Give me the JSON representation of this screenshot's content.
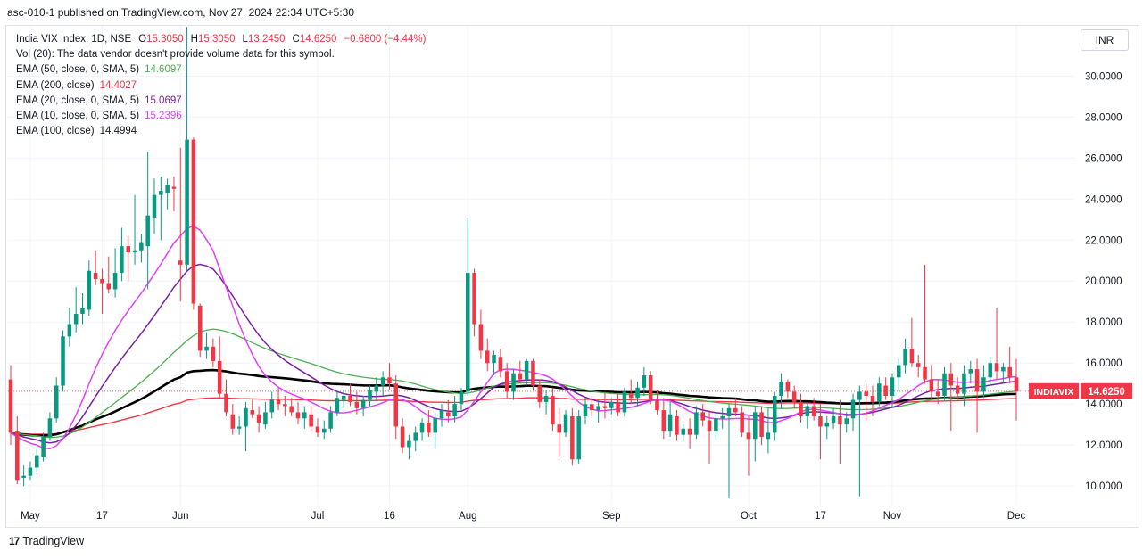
{
  "header": {
    "text": "asc-010-1 published on TradingView.com, Nov 27, 2024 22:34 UTC+5:30"
  },
  "legend": {
    "symbol": "India VIX Index, 1D, NSE",
    "ohlc": [
      {
        "key": "O",
        "value": "15.3050"
      },
      {
        "key": "H",
        "value": "15.3050"
      },
      {
        "key": "L",
        "value": "13.2450"
      },
      {
        "key": "C",
        "value": "14.6250"
      }
    ],
    "change": "−0.6800 (−4.44%)",
    "volume_note": "Vol (20): The data vendor doesn't provide volume data for this symbol.",
    "indicators": [
      {
        "label": "EMA (50, close, 0, SMA, 5)",
        "value": "14.6097",
        "color": "#4caf50"
      },
      {
        "label": "EMA (200, close)",
        "value": "14.4027",
        "color": "#f23645"
      },
      {
        "label": "EMA (20, close, 0, SMA, 5)",
        "value": "15.0697",
        "color": "#7b1fa2"
      },
      {
        "label": "EMA (10, close, 0, SMA, 5)",
        "value": "15.2396",
        "color": "#e040fb"
      },
      {
        "label": "EMA (100, close)",
        "value": "14.4994",
        "color": "#131722"
      }
    ]
  },
  "currency": "INR",
  "price_tag": {
    "symbol": "INDIAVIX",
    "value": "14.6250",
    "color": "#f23645"
  },
  "footer": {
    "logo": "17",
    "brand": "TradingView"
  },
  "chart_data": {
    "type": "candlestick",
    "y_ticks": [
      "10.0000",
      "12.0000",
      "14.0000",
      "16.0000",
      "18.0000",
      "20.0000",
      "22.0000",
      "24.0000",
      "26.0000",
      "28.0000",
      "30.0000"
    ],
    "ylim": [
      9.05,
      32.45
    ],
    "x_ticks": [
      {
        "label": "May",
        "i": 3
      },
      {
        "label": "17",
        "i": 14
      },
      {
        "label": "Jun",
        "i": 26
      },
      {
        "label": "Jul",
        "i": 47
      },
      {
        "label": "16",
        "i": 58
      },
      {
        "label": "Aug",
        "i": 70
      },
      {
        "label": "Sep",
        "i": 92
      },
      {
        "label": "Oct",
        "i": 113
      },
      {
        "label": "17",
        "i": 124
      },
      {
        "label": "Nov",
        "i": 135
      },
      {
        "label": "Dec",
        "i": 154
      }
    ],
    "last_close": 14.625,
    "colors": {
      "up": "#089981",
      "down": "#f23645"
    },
    "candles": [
      [
        15.2,
        15.9,
        12.0,
        12.6
      ],
      [
        12.7,
        13.4,
        10.1,
        10.3
      ],
      [
        10.4,
        11.0,
        10.0,
        10.5
      ],
      [
        10.5,
        11.2,
        10.3,
        10.9
      ],
      [
        10.9,
        11.8,
        10.7,
        11.5
      ],
      [
        11.4,
        12.6,
        11.2,
        12.4
      ],
      [
        12.4,
        13.6,
        12.2,
        13.3
      ],
      [
        13.3,
        15.3,
        13.1,
        14.9
      ],
      [
        14.9,
        17.6,
        14.6,
        17.3
      ],
      [
        17.3,
        18.7,
        16.8,
        17.9
      ],
      [
        17.9,
        19.7,
        17.5,
        18.4
      ],
      [
        18.4,
        19.4,
        17.9,
        18.7
      ],
      [
        18.6,
        21.0,
        18.3,
        20.5
      ],
      [
        20.4,
        21.5,
        19.8,
        20.1
      ],
      [
        20.1,
        20.6,
        18.4,
        19.9
      ],
      [
        19.9,
        21.2,
        19.4,
        19.6
      ],
      [
        19.6,
        21.6,
        19.2,
        20.4
      ],
      [
        20.4,
        22.6,
        20.0,
        21.7
      ],
      [
        21.7,
        22.2,
        20.0,
        21.4
      ],
      [
        21.4,
        24.2,
        20.8,
        21.5
      ],
      [
        21.5,
        22.3,
        20.9,
        21.9
      ],
      [
        21.7,
        26.3,
        19.6,
        23.2
      ],
      [
        23.1,
        25.0,
        22.3,
        24.2
      ],
      [
        24.2,
        25.1,
        22.0,
        24.4
      ],
      [
        24.3,
        25.0,
        23.5,
        24.7
      ],
      [
        24.6,
        25.1,
        23.4,
        24.5
      ],
      [
        21.0,
        26.5,
        19.0,
        20.8
      ],
      [
        20.8,
        32.4,
        20.5,
        26.9
      ],
      [
        26.9,
        27.0,
        18.6,
        18.9
      ],
      [
        18.8,
        18.9,
        16.3,
        16.6
      ],
      [
        16.6,
        17.5,
        16.2,
        16.8
      ],
      [
        16.8,
        17.2,
        15.8,
        16.1
      ],
      [
        16.1,
        17.3,
        14.3,
        14.5
      ],
      [
        14.5,
        15.2,
        13.4,
        13.6
      ],
      [
        13.5,
        14.0,
        12.5,
        12.8
      ],
      [
        12.8,
        13.4,
        12.5,
        12.9
      ],
      [
        12.9,
        14.1,
        11.7,
        13.8
      ],
      [
        13.7,
        14.2,
        13.3,
        13.5
      ],
      [
        13.5,
        13.9,
        12.6,
        13.1
      ],
      [
        13.0,
        14.1,
        12.8,
        13.6
      ],
      [
        13.6,
        14.6,
        13.3,
        14.2
      ],
      [
        14.2,
        14.8,
        13.7,
        14.0
      ],
      [
        14.0,
        14.4,
        13.4,
        13.9
      ],
      [
        13.9,
        14.3,
        13.4,
        13.6
      ],
      [
        13.6,
        14.1,
        13.0,
        13.3
      ],
      [
        13.3,
        13.9,
        12.8,
        13.6
      ],
      [
        13.5,
        13.9,
        12.7,
        12.9
      ],
      [
        12.9,
        13.3,
        12.4,
        12.6
      ],
      [
        12.6,
        13.2,
        12.3,
        12.8
      ],
      [
        12.8,
        13.9,
        12.6,
        13.6
      ],
      [
        13.6,
        14.6,
        13.4,
        14.3
      ],
      [
        14.2,
        14.7,
        13.8,
        14.4
      ],
      [
        14.4,
        15.0,
        13.9,
        14.1
      ],
      [
        14.1,
        14.6,
        13.5,
        13.8
      ],
      [
        13.8,
        14.4,
        13.4,
        14.2
      ],
      [
        14.2,
        14.9,
        13.9,
        14.7
      ],
      [
        14.6,
        15.3,
        14.2,
        14.9
      ],
      [
        14.9,
        15.6,
        14.4,
        15.3
      ],
      [
        15.3,
        16.0,
        14.7,
        15.0
      ],
      [
        15.0,
        15.4,
        12.3,
        12.9
      ],
      [
        12.9,
        13.3,
        11.6,
        11.9
      ],
      [
        11.9,
        12.5,
        11.3,
        12.2
      ],
      [
        12.2,
        12.9,
        11.7,
        12.6
      ],
      [
        12.6,
        13.3,
        12.2,
        13.1
      ],
      [
        13.1,
        13.7,
        12.4,
        12.6
      ],
      [
        12.6,
        13.6,
        11.8,
        13.3
      ],
      [
        13.3,
        14.0,
        12.9,
        13.7
      ],
      [
        13.6,
        14.2,
        13.1,
        13.4
      ],
      [
        13.4,
        14.4,
        13.1,
        14.0
      ],
      [
        14.0,
        14.8,
        13.7,
        14.6
      ],
      [
        14.6,
        23.1,
        14.4,
        20.4
      ],
      [
        20.4,
        20.6,
        17.3,
        17.9
      ],
      [
        17.9,
        18.6,
        16.2,
        16.6
      ],
      [
        16.6,
        17.2,
        15.6,
        16.0
      ],
      [
        16.0,
        16.6,
        15.4,
        16.4
      ],
      [
        16.3,
        16.7,
        15.3,
        15.6
      ],
      [
        15.6,
        16.0,
        14.3,
        14.6
      ],
      [
        14.6,
        15.7,
        14.2,
        15.5
      ],
      [
        15.5,
        16.1,
        15.0,
        15.2
      ],
      [
        15.2,
        16.2,
        14.9,
        16.1
      ],
      [
        16.1,
        16.2,
        14.7,
        14.9
      ],
      [
        14.9,
        15.2,
        13.8,
        14.1
      ],
      [
        14.1,
        14.7,
        13.5,
        14.4
      ],
      [
        14.4,
        14.8,
        12.7,
        13.0
      ],
      [
        13.0,
        13.8,
        11.4,
        12.6
      ],
      [
        12.6,
        13.7,
        12.4,
        13.5
      ],
      [
        13.4,
        13.8,
        11.0,
        11.3
      ],
      [
        11.3,
        13.7,
        11.1,
        13.4
      ],
      [
        13.4,
        14.3,
        13.0,
        14.0
      ],
      [
        14.0,
        14.4,
        13.4,
        13.7
      ],
      [
        13.7,
        14.2,
        13.1,
        13.9
      ],
      [
        13.9,
        14.6,
        13.3,
        13.8
      ],
      [
        13.8,
        14.3,
        13.5,
        14.1
      ],
      [
        14.1,
        14.5,
        13.4,
        13.6
      ],
      [
        13.6,
        14.8,
        13.4,
        14.6
      ],
      [
        14.5,
        15.2,
        14.0,
        14.3
      ],
      [
        14.3,
        15.1,
        13.9,
        14.8
      ],
      [
        14.8,
        15.8,
        14.4,
        15.4
      ],
      [
        15.4,
        15.6,
        14.0,
        14.2
      ],
      [
        14.2,
        14.7,
        13.5,
        13.7
      ],
      [
        13.7,
        14.3,
        12.3,
        12.7
      ],
      [
        12.7,
        14.1,
        12.4,
        13.5
      ],
      [
        13.4,
        13.7,
        12.2,
        12.5
      ],
      [
        12.5,
        13.0,
        12.2,
        12.8
      ],
      [
        12.8,
        13.3,
        11.8,
        12.5
      ],
      [
        12.5,
        13.9,
        12.3,
        13.6
      ],
      [
        13.6,
        14.0,
        12.9,
        13.2
      ],
      [
        13.2,
        13.7,
        11.1,
        12.7
      ],
      [
        12.7,
        13.6,
        12.3,
        13.3
      ],
      [
        13.3,
        13.8,
        12.8,
        13.4
      ],
      [
        13.4,
        14.0,
        9.4,
        13.8
      ],
      [
        13.8,
        14.3,
        13.4,
        13.6
      ],
      [
        13.6,
        13.9,
        12.4,
        12.6
      ],
      [
        12.6,
        13.4,
        10.5,
        12.3
      ],
      [
        12.3,
        13.9,
        11.2,
        13.6
      ],
      [
        13.6,
        13.9,
        12.0,
        12.4
      ],
      [
        12.3,
        13.8,
        11.6,
        12.6
      ],
      [
        12.6,
        14.6,
        12.2,
        14.4
      ],
      [
        14.4,
        15.5,
        13.8,
        15.1
      ],
      [
        15.1,
        15.2,
        14.3,
        14.6
      ],
      [
        14.6,
        14.9,
        13.8,
        14.1
      ],
      [
        14.1,
        14.5,
        13.1,
        13.4
      ],
      [
        13.4,
        14.1,
        12.8,
        13.9
      ],
      [
        13.9,
        14.3,
        13.2,
        13.4
      ],
      [
        13.4,
        14.0,
        11.3,
        12.9
      ],
      [
        12.9,
        13.4,
        12.3,
        13.1
      ],
      [
        13.1,
        13.8,
        12.8,
        13.4
      ],
      [
        13.4,
        14.2,
        11.1,
        13.0
      ],
      [
        13.0,
        13.6,
        12.6,
        13.3
      ],
      [
        13.3,
        14.5,
        12.7,
        14.2
      ],
      [
        14.2,
        14.9,
        9.5,
        14.6
      ],
      [
        14.6,
        15.0,
        13.2,
        14.4
      ],
      [
        14.4,
        14.9,
        13.4,
        14.1
      ],
      [
        14.1,
        15.3,
        13.9,
        15.0
      ],
      [
        14.9,
        15.3,
        14.2,
        14.4
      ],
      [
        14.4,
        15.5,
        13.8,
        15.3
      ],
      [
        15.3,
        16.2,
        14.7,
        15.9
      ],
      [
        15.9,
        17.2,
        15.5,
        16.7
      ],
      [
        16.7,
        18.2,
        15.8,
        16.0
      ],
      [
        16.0,
        16.4,
        15.3,
        15.8
      ],
      [
        15.8,
        20.8,
        15.0,
        15.2
      ],
      [
        15.2,
        15.9,
        14.2,
        14.6
      ],
      [
        14.6,
        15.2,
        14.0,
        14.4
      ],
      [
        14.4,
        15.8,
        14.2,
        15.5
      ],
      [
        15.5,
        16.0,
        12.7,
        14.9
      ],
      [
        14.9,
        15.3,
        14.2,
        14.5
      ],
      [
        14.5,
        15.9,
        13.9,
        15.5
      ],
      [
        15.5,
        16.1,
        15.0,
        15.7
      ],
      [
        15.7,
        16.2,
        12.6,
        14.6
      ],
      [
        14.6,
        15.9,
        14.3,
        15.3
      ],
      [
        15.3,
        16.3,
        14.9,
        16.0
      ],
      [
        16.0,
        18.7,
        15.2,
        15.6
      ],
      [
        15.6,
        16.0,
        15.1,
        15.8
      ],
      [
        15.8,
        16.8,
        15.0,
        15.3
      ],
      [
        15.3,
        16.2,
        13.2,
        14.62
      ]
    ]
  }
}
